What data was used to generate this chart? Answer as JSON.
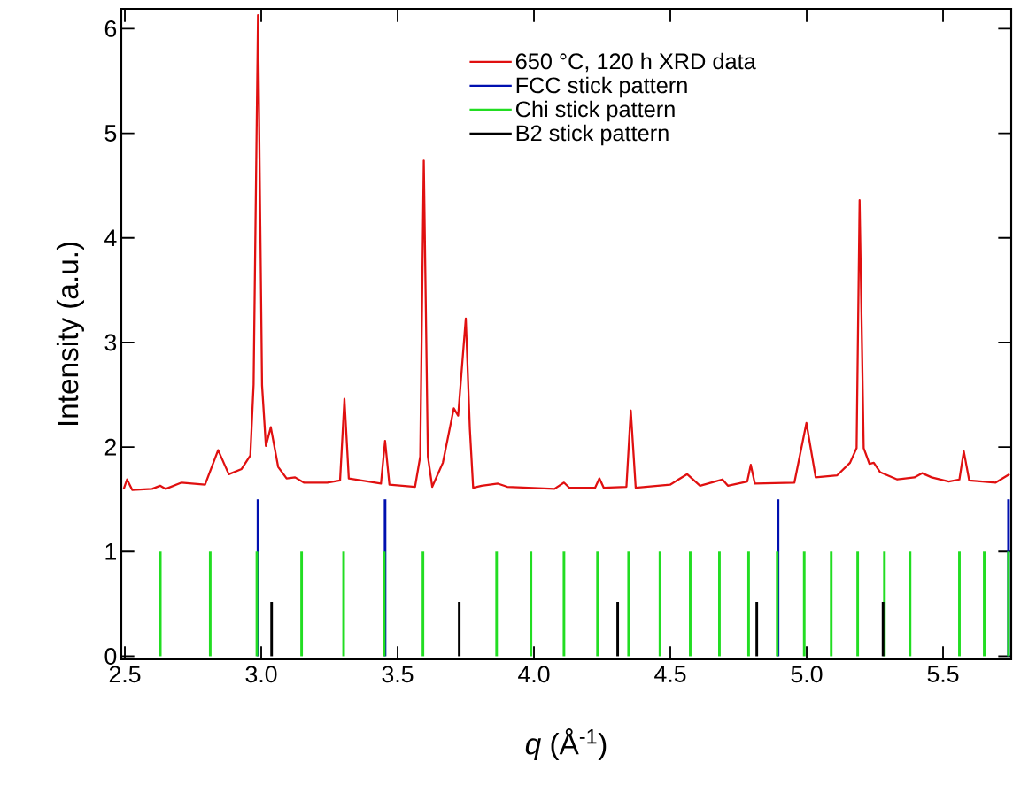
{
  "chart_data": {
    "type": "line",
    "xlabel": "*q* (Å$^{-1}$)",
    "ylabel": "Intensity (a.u.)",
    "xlim": [
      2.487,
      5.75
    ],
    "ylim": [
      -0.03,
      6.19
    ],
    "xticks": [
      {
        "value": 2.5,
        "label": "2.5"
      },
      {
        "value": 3,
        "label": "3.0"
      },
      {
        "value": 3.5,
        "label": "3.5"
      },
      {
        "value": 4,
        "label": "4.0"
      },
      {
        "value": 4.5,
        "label": "4.5"
      },
      {
        "value": 5,
        "label": "5.0"
      },
      {
        "value": 5.5,
        "label": "5.5"
      }
    ],
    "yticks": [
      0,
      1,
      2,
      3,
      4,
      5,
      6
    ],
    "legend": "top",
    "series": [
      {
        "name": "650 °C, 120 h XRD data",
        "color": "#e01010",
        "x": [
          2.496,
          2.508,
          2.527,
          2.6,
          2.629,
          2.65,
          2.708,
          2.794,
          2.842,
          2.881,
          2.928,
          2.96,
          2.972,
          2.988,
          3.003,
          3.017,
          3.035,
          3.062,
          3.093,
          3.124,
          3.156,
          3.242,
          3.289,
          3.305,
          3.321,
          3.439,
          3.454,
          3.47,
          3.564,
          3.583,
          3.596,
          3.611,
          3.627,
          3.666,
          3.706,
          3.722,
          3.75,
          3.765,
          3.777,
          3.808,
          3.868,
          3.902,
          4.075,
          4.11,
          4.13,
          4.224,
          4.24,
          4.256,
          4.339,
          4.355,
          4.373,
          4.499,
          4.562,
          4.609,
          4.664,
          4.691,
          4.711,
          4.782,
          4.795,
          4.81,
          4.955,
          4.999,
          5.033,
          5.112,
          5.159,
          5.183,
          5.194,
          5.209,
          5.23,
          5.246,
          5.269,
          5.332,
          5.395,
          5.423,
          5.458,
          5.521,
          5.56,
          5.576,
          5.596,
          5.693,
          5.744
        ],
        "values": [
          1.6,
          1.69,
          1.59,
          1.6,
          1.63,
          1.6,
          1.66,
          1.64,
          1.97,
          1.74,
          1.79,
          1.92,
          2.6,
          6.13,
          2.59,
          2.01,
          2.19,
          1.81,
          1.7,
          1.71,
          1.66,
          1.66,
          1.68,
          2.46,
          1.7,
          1.65,
          2.06,
          1.64,
          1.62,
          1.91,
          4.74,
          1.91,
          1.62,
          1.85,
          2.37,
          2.3,
          3.23,
          2.17,
          1.61,
          1.63,
          1.65,
          1.62,
          1.6,
          1.66,
          1.61,
          1.61,
          1.7,
          1.61,
          1.62,
          2.35,
          1.61,
          1.64,
          1.74,
          1.63,
          1.67,
          1.69,
          1.63,
          1.67,
          1.83,
          1.65,
          1.66,
          2.23,
          1.71,
          1.73,
          1.85,
          1.99,
          4.36,
          1.99,
          1.84,
          1.85,
          1.76,
          1.69,
          1.71,
          1.75,
          1.71,
          1.67,
          1.69,
          1.96,
          1.68,
          1.66,
          1.74
        ]
      },
      {
        "name": "FCC stick pattern",
        "type": "bar",
        "color": "#0010b0",
        "x": [
          2.988,
          3.454,
          4.895,
          5.74
        ],
        "values": [
          1.5,
          1.5,
          1.5,
          1.5
        ]
      },
      {
        "name": "Chi stick pattern",
        "type": "bar",
        "color": "#22dd22",
        "x": [
          2.63,
          2.813,
          2.984,
          3.148,
          3.302,
          3.451,
          3.593,
          3.863,
          3.989,
          4.11,
          4.233,
          4.347,
          4.462,
          4.573,
          4.68,
          4.787,
          4.892,
          4.991,
          5.09,
          5.187,
          5.285,
          5.379,
          5.56,
          5.651,
          5.74
        ],
        "values": [
          1,
          1,
          1,
          1,
          1,
          1,
          1,
          1,
          1,
          1,
          1,
          1,
          1,
          1,
          1,
          1,
          1,
          1,
          1,
          1,
          1,
          1,
          1,
          1,
          1
        ]
      },
      {
        "name": "B2 stick pattern",
        "type": "bar",
        "color": "#000000",
        "x": [
          3.038,
          3.726,
          4.307,
          4.817,
          5.28
        ],
        "values": [
          0.52,
          0.52,
          0.52,
          0.52,
          0.52
        ]
      }
    ]
  }
}
